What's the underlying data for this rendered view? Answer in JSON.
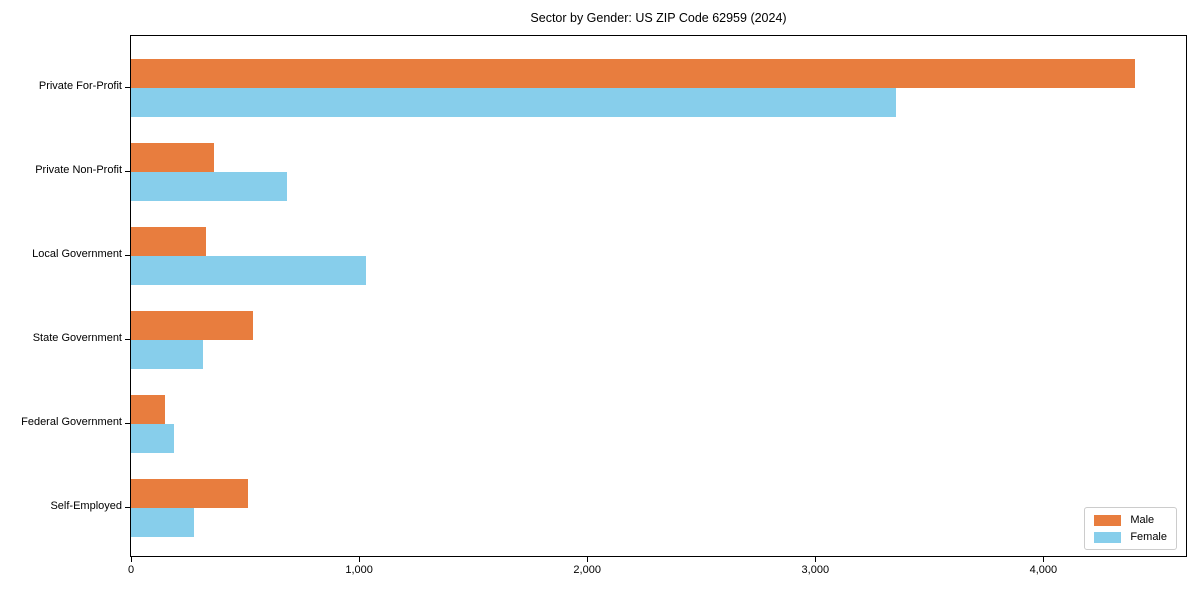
{
  "title": "Sector by Gender: US ZIP Code 62959 (2024)",
  "colors": {
    "male": "#e87d3e",
    "female": "#87ceeb",
    "axis": "#000000",
    "legend_border": "#cccccc",
    "background": "#ffffff"
  },
  "legend": {
    "position": "lower right",
    "items": [
      {
        "label": "Male",
        "color": "#e87d3e"
      },
      {
        "label": "Female",
        "color": "#87ceeb"
      }
    ]
  },
  "chart_data": {
    "type": "bar",
    "orientation": "horizontal",
    "title": "Sector by Gender: US ZIP Code 62959 (2024)",
    "categories": [
      "Private For-Profit",
      "Private Non-Profit",
      "Local Government",
      "State Government",
      "Federal Government",
      "Self-Employed"
    ],
    "series": [
      {
        "name": "Male",
        "color": "#e87d3e",
        "values": [
          4400,
          365,
          330,
          533,
          148,
          513
        ]
      },
      {
        "name": "Female",
        "color": "#87ceeb",
        "values": [
          3355,
          683,
          1030,
          315,
          190,
          275
        ]
      }
    ],
    "xlabel": "",
    "ylabel": "",
    "xlim": [
      0,
      4625
    ],
    "xticks": [
      0,
      1000,
      2000,
      3000,
      4000
    ],
    "xtick_labels": [
      "0",
      "1,000",
      "2,000",
      "3,000",
      "4,000"
    ],
    "grid": false,
    "legend_position": "lower right"
  }
}
